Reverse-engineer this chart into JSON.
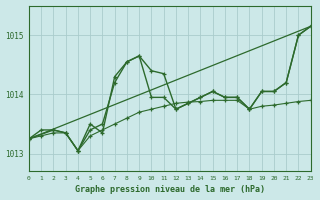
{
  "background_color": "#cce8e8",
  "grid_color": "#aacccc",
  "line_color": "#2d6a2d",
  "title": "Graphe pression niveau de la mer (hPa)",
  "xlim": [
    0,
    23
  ],
  "ylim": [
    1012.7,
    1015.5
  ],
  "yticks": [
    1013,
    1014,
    1015
  ],
  "xticks": [
    0,
    1,
    2,
    3,
    4,
    5,
    6,
    7,
    8,
    9,
    10,
    11,
    12,
    13,
    14,
    15,
    16,
    17,
    18,
    19,
    20,
    21,
    22,
    23
  ],
  "series": [
    {
      "x": [
        0,
        1,
        2,
        3,
        4,
        5,
        6,
        7,
        8,
        9,
        10,
        11,
        12,
        13,
        14,
        15,
        16,
        17,
        18,
        19,
        20,
        21,
        22,
        23
      ],
      "y": [
        1013.25,
        1013.4,
        1013.4,
        1013.35,
        1013.05,
        1013.4,
        1013.5,
        1014.2,
        1014.55,
        1014.65,
        1013.95,
        1013.95,
        1013.75,
        1013.85,
        1013.95,
        1014.05,
        1013.95,
        1013.95,
        1013.75,
        1014.05,
        1014.05,
        1014.2,
        1015.0,
        1015.15
      ],
      "marker": true,
      "linewidth": 1.0
    },
    {
      "x": [
        0,
        2,
        3,
        4,
        5,
        6,
        7,
        8,
        9,
        10,
        11,
        12,
        13,
        14,
        15,
        16,
        17,
        18,
        19,
        20,
        21,
        22,
        23
      ],
      "y": [
        1013.25,
        1013.4,
        1013.35,
        1013.05,
        1013.5,
        1013.35,
        1014.3,
        1014.55,
        1014.65,
        1014.4,
        1014.35,
        1013.75,
        1013.85,
        1013.95,
        1014.05,
        1013.95,
        1013.95,
        1013.75,
        1014.05,
        1014.05,
        1014.2,
        1015.0,
        1015.15
      ],
      "marker": true,
      "linewidth": 1.0
    },
    {
      "x": [
        0,
        23
      ],
      "y": [
        1013.25,
        1015.15
      ],
      "marker": false,
      "linewidth": 0.9
    },
    {
      "x": [
        0,
        1,
        2,
        3,
        4,
        5,
        6,
        7,
        8,
        9,
        10,
        11,
        12,
        13,
        14,
        15,
        16,
        17,
        18,
        19,
        20,
        21,
        22,
        23
      ],
      "y": [
        1013.25,
        1013.3,
        1013.35,
        1013.35,
        1013.05,
        1013.3,
        1013.4,
        1013.5,
        1013.6,
        1013.7,
        1013.75,
        1013.8,
        1013.85,
        1013.87,
        1013.88,
        1013.9,
        1013.9,
        1013.9,
        1013.75,
        1013.8,
        1013.82,
        1013.85,
        1013.88,
        1013.9
      ],
      "marker": true,
      "linewidth": 0.8
    }
  ]
}
